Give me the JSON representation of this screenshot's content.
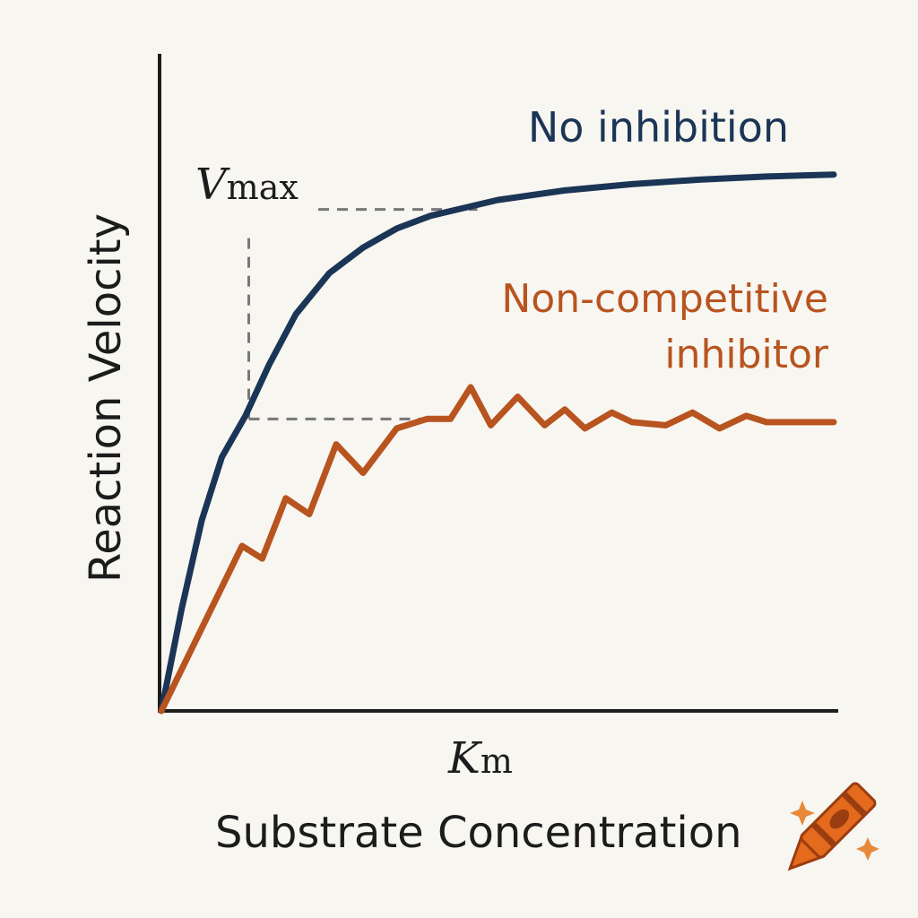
{
  "chart_data": {
    "type": "line",
    "title": "",
    "xlabel": "Substrate Concentration",
    "ylabel": "Reaction Velocity",
    "xlim": [
      0,
      10
    ],
    "ylim": [
      0,
      10
    ],
    "grid": false,
    "annotations": {
      "vmax_symbol": "V",
      "vmax_subscript": "max",
      "km_symbol": "K",
      "km_subscript": "m",
      "vmax_level": 7.9,
      "half_vmax_level": 4.6,
      "km_value": 1.3
    },
    "series": [
      {
        "name": "No inhibition",
        "color": "#1b3556",
        "x": [
          0,
          0.3,
          0.6,
          0.9,
          1.25,
          1.6,
          2.0,
          2.5,
          3.0,
          3.5,
          4.0,
          5.0,
          6.0,
          7.0,
          8.0,
          9.0,
          10.0
        ],
        "y": [
          0,
          1.6,
          3.0,
          4.0,
          4.65,
          5.45,
          6.25,
          6.9,
          7.3,
          7.6,
          7.8,
          8.05,
          8.2,
          8.3,
          8.37,
          8.42,
          8.45
        ]
      },
      {
        "name": "Non-competitive inhibitor",
        "color": "#b8541f",
        "x": [
          0,
          1.2,
          1.5,
          1.85,
          2.2,
          2.6,
          3.0,
          3.5,
          3.95,
          4.3,
          4.6,
          4.9,
          5.3,
          5.7,
          6.0,
          6.3,
          6.7,
          7.0,
          7.5,
          7.9,
          8.3,
          8.7,
          9.0,
          10.0
        ],
        "y": [
          0,
          2.6,
          2.4,
          3.35,
          3.1,
          4.2,
          3.75,
          4.45,
          4.6,
          4.6,
          5.1,
          4.5,
          4.95,
          4.5,
          4.75,
          4.45,
          4.7,
          4.55,
          4.5,
          4.7,
          4.45,
          4.65,
          4.55,
          4.55
        ]
      }
    ]
  },
  "legend": {
    "line1_label": "No inhibition",
    "line2_label_a": "Non-competitive",
    "line2_label_b": "inhibitor"
  },
  "colors": {
    "background": "#f8f6f1",
    "axis": "#1c1c1c",
    "guide": "#777777",
    "crayon_body": "#e46a1e",
    "crayon_dark": "#9a3d10",
    "sparkle": "#e8893a"
  },
  "icons": {
    "decoration": "crayon-icon",
    "sparkles": "sparkle-icon"
  }
}
